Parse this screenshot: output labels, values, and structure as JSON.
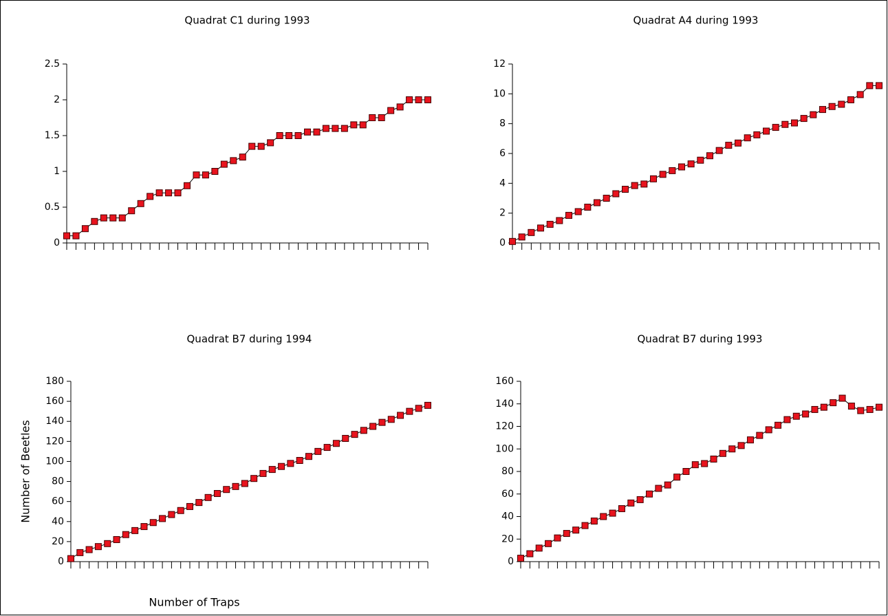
{
  "chart_data": [
    {
      "type": "line",
      "title": "Quadrat C1 during 1993",
      "categories": [
        null,
        null,
        null,
        null,
        null,
        null,
        null,
        null,
        null,
        null,
        null,
        null,
        null,
        null,
        null,
        null,
        null,
        null,
        null,
        null,
        null,
        null,
        null,
        null,
        null,
        null,
        null,
        null,
        null,
        null,
        null,
        null,
        null,
        null,
        null,
        null,
        null,
        null,
        null,
        null
      ],
      "series": [
        {
          "color": "#e8141e",
          "values": [
            0.1,
            0.1,
            0.2,
            0.3,
            0.35,
            0.35,
            0.35,
            0.45,
            0.55,
            0.65,
            0.7,
            0.7,
            0.7,
            0.8,
            0.95,
            0.95,
            1.0,
            1.1,
            1.15,
            1.2,
            1.35,
            1.35,
            1.4,
            1.5,
            1.5,
            1.5,
            1.55,
            1.55,
            1.6,
            1.6,
            1.6,
            1.65,
            1.65,
            1.75,
            1.75,
            1.85,
            1.9,
            2.0,
            2.0,
            2.0
          ]
        }
      ],
      "ylim": [
        0,
        2.5
      ],
      "yticks": [
        0,
        0.5,
        1,
        1.5,
        2,
        2.5
      ]
    },
    {
      "type": "line",
      "title": "Quadrat A4 during 1993",
      "categories": [
        null,
        null,
        null,
        null,
        null,
        null,
        null,
        null,
        null,
        null,
        null,
        null,
        null,
        null,
        null,
        null,
        null,
        null,
        null,
        null,
        null,
        null,
        null,
        null,
        null,
        null,
        null,
        null,
        null,
        null,
        null,
        null,
        null,
        null,
        null,
        null,
        null,
        null,
        null,
        null
      ],
      "series": [
        {
          "color": "#e8141e",
          "values": [
            0.1,
            0.4,
            0.7,
            1.0,
            1.25,
            1.5,
            1.85,
            2.1,
            2.4,
            2.7,
            3.0,
            3.3,
            3.6,
            3.85,
            3.95,
            4.3,
            4.6,
            4.85,
            5.1,
            5.3,
            5.55,
            5.85,
            6.2,
            6.55,
            6.7,
            7.05,
            7.25,
            7.5,
            7.75,
            7.95,
            8.05,
            8.35,
            8.6,
            8.95,
            9.15,
            9.3,
            9.6,
            9.95,
            10.55,
            10.55
          ]
        }
      ],
      "ylim": [
        0,
        12
      ],
      "yticks": [
        0,
        2,
        4,
        6,
        8,
        10,
        12
      ]
    },
    {
      "type": "line",
      "title": "Quadrat B7 during 1994",
      "xlabel": "Number of Traps",
      "ylabel": "Number of Beetles",
      "categories": [
        null,
        null,
        null,
        null,
        null,
        null,
        null,
        null,
        null,
        null,
        null,
        null,
        null,
        null,
        null,
        null,
        null,
        null,
        null,
        null,
        null,
        null,
        null,
        null,
        null,
        null,
        null,
        null,
        null,
        null,
        null,
        null,
        null,
        null,
        null,
        null,
        null,
        null,
        null,
        null
      ],
      "series": [
        {
          "color": "#e8141e",
          "values": [
            3,
            9,
            12,
            15,
            18,
            22,
            27,
            31,
            35,
            39,
            43,
            47,
            51,
            55,
            59,
            64,
            68,
            72,
            75,
            78,
            83,
            88,
            92,
            95,
            98,
            101,
            105,
            110,
            114,
            118,
            123,
            127,
            131,
            135,
            139,
            142,
            146,
            150,
            153,
            156
          ]
        }
      ],
      "ylim": [
        0,
        180
      ],
      "yticks": [
        0,
        20,
        40,
        60,
        80,
        100,
        120,
        140,
        160,
        180
      ]
    },
    {
      "type": "line",
      "title": "Quadrat B7 during 1993",
      "categories": [
        null,
        null,
        null,
        null,
        null,
        null,
        null,
        null,
        null,
        null,
        null,
        null,
        null,
        null,
        null,
        null,
        null,
        null,
        null,
        null,
        null,
        null,
        null,
        null,
        null,
        null,
        null,
        null,
        null,
        null,
        null,
        null,
        null,
        null,
        null,
        null,
        null,
        null,
        null,
        null
      ],
      "series": [
        {
          "color": "#e8141e",
          "values": [
            3,
            7,
            12,
            16,
            21,
            25,
            28,
            32,
            36,
            40,
            43,
            47,
            52,
            55,
            60,
            65,
            68,
            75,
            80,
            86,
            87,
            91,
            96,
            100,
            103,
            108,
            112,
            117,
            121,
            126,
            129,
            131,
            135,
            137,
            141,
            145,
            138,
            134,
            135,
            137
          ]
        }
      ],
      "ylim": [
        0,
        160
      ],
      "yticks": [
        0,
        20,
        40,
        60,
        80,
        100,
        120,
        140,
        160
      ]
    }
  ]
}
